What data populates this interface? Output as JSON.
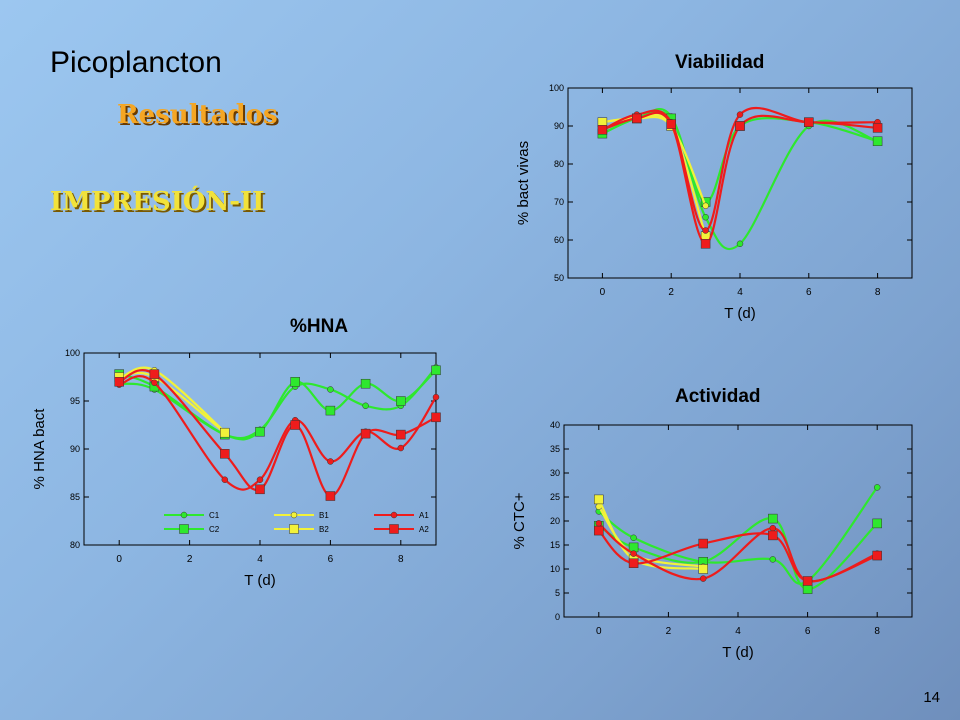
{
  "slide": {
    "title": "Picoplancton",
    "subtitle": "Resultados",
    "section": "IMPRESIÓN-II",
    "page_number": "14"
  },
  "colors": {
    "green": "#2ee82e",
    "yellow": "#f2f23a",
    "red": "#ee1c1c"
  },
  "chart_data": [
    {
      "id": "viabilidad",
      "type": "line",
      "title": "Viabilidad",
      "xlabel": "T (d)",
      "ylabel": "% bact vivas",
      "xlim": [
        -1,
        9
      ],
      "ylim": [
        50,
        100
      ],
      "xticks": [
        0,
        2,
        4,
        6,
        8
      ],
      "yticks": [
        50,
        60,
        70,
        80,
        90,
        100
      ],
      "grid": false,
      "series": [
        {
          "color": "green",
          "marker": "circle",
          "x": [
            0,
            1,
            2,
            3,
            4,
            6,
            8
          ],
          "y": [
            88,
            92,
            92.5,
            66,
            59,
            90,
            86
          ]
        },
        {
          "color": "green",
          "marker": "square",
          "x": [
            0,
            1,
            2,
            3,
            4,
            6,
            8
          ],
          "y": [
            88,
            92,
            92,
            70,
            90,
            91,
            86
          ]
        },
        {
          "color": "yellow",
          "marker": "circle",
          "x": [
            0,
            1,
            2,
            3
          ],
          "y": [
            91,
            92,
            90,
            69
          ]
        },
        {
          "color": "yellow",
          "marker": "square",
          "x": [
            0,
            1,
            2,
            3
          ],
          "y": [
            91,
            92,
            90,
            61
          ]
        },
        {
          "color": "red",
          "marker": "circle",
          "x": [
            0,
            1,
            2,
            3,
            4,
            6,
            8
          ],
          "y": [
            89,
            93,
            91,
            62.5,
            93,
            91,
            91
          ]
        },
        {
          "color": "red",
          "marker": "square",
          "x": [
            0,
            1,
            2,
            3,
            4,
            6,
            8
          ],
          "y": [
            89,
            92,
            90.5,
            59,
            90,
            91,
            89.5
          ]
        }
      ]
    },
    {
      "id": "hna",
      "type": "line",
      "title": "%HNA",
      "xlabel": "T (d)",
      "ylabel": "% HNA bact",
      "xlim": [
        -1,
        9
      ],
      "ylim": [
        80,
        100
      ],
      "xticks": [
        0,
        2,
        4,
        6,
        8
      ],
      "yticks": [
        80,
        85,
        90,
        95,
        100
      ],
      "grid": false,
      "legend": [
        {
          "label": "C1",
          "color": "green",
          "marker": "circle"
        },
        {
          "label": "B1",
          "color": "yellow",
          "marker": "circle"
        },
        {
          "label": "A1",
          "color": "red",
          "marker": "circle"
        },
        {
          "label": "C2",
          "color": "green",
          "marker": "square"
        },
        {
          "label": "B2",
          "color": "yellow",
          "marker": "square"
        },
        {
          "label": "A2",
          "color": "red",
          "marker": "square"
        }
      ],
      "series": [
        {
          "name": "C1",
          "color": "green",
          "marker": "circle",
          "x": [
            0,
            1,
            3,
            4,
            5,
            6,
            7,
            8,
            9
          ],
          "y": [
            96.8,
            96.2,
            91.5,
            92,
            96.5,
            96.2,
            94.5,
            94.5,
            98.5
          ]
        },
        {
          "name": "C2",
          "color": "green",
          "marker": "square",
          "x": [
            0,
            1,
            3,
            4,
            5,
            6,
            7,
            8,
            9
          ],
          "y": [
            97.8,
            96.5,
            91.5,
            91.8,
            97,
            94,
            96.8,
            95,
            98.2
          ]
        },
        {
          "name": "B1",
          "color": "yellow",
          "marker": "circle",
          "x": [
            0,
            1,
            3
          ],
          "y": [
            97.3,
            98.2,
            91.8
          ]
        },
        {
          "name": "B2",
          "color": "yellow",
          "marker": "square",
          "x": [
            0,
            1,
            3
          ],
          "y": [
            97.5,
            97.5,
            91.7
          ]
        },
        {
          "name": "A1",
          "color": "red",
          "marker": "circle",
          "x": [
            0,
            1,
            3,
            4,
            5,
            6,
            7,
            8,
            9
          ],
          "y": [
            96.7,
            96.9,
            86.8,
            86.8,
            93,
            88.7,
            91.8,
            90.1,
            95.4
          ]
        },
        {
          "name": "A2",
          "color": "red",
          "marker": "square",
          "x": [
            0,
            1,
            3,
            4,
            5,
            6,
            7,
            8,
            9
          ],
          "y": [
            97,
            97.8,
            89.5,
            85.8,
            92.5,
            85.1,
            91.6,
            91.5,
            93.3
          ]
        }
      ]
    },
    {
      "id": "actividad",
      "type": "line",
      "title": "Actividad",
      "xlabel": "T (d)",
      "ylabel": "% CTC+",
      "xlim": [
        -1,
        9
      ],
      "ylim": [
        0,
        40
      ],
      "xticks": [
        0,
        2,
        4,
        6,
        8
      ],
      "yticks": [
        0,
        5,
        10,
        15,
        20,
        25,
        30,
        35,
        40
      ],
      "grid": false,
      "series": [
        {
          "color": "green",
          "marker": "circle",
          "x": [
            0,
            1,
            3,
            5,
            6,
            8
          ],
          "y": [
            22,
            16.5,
            11.5,
            12,
            7.5,
            27
          ]
        },
        {
          "color": "green",
          "marker": "square",
          "x": [
            0,
            1,
            3,
            5,
            6,
            8
          ],
          "y": [
            19,
            14.5,
            11.5,
            20.5,
            5.8,
            19.5
          ]
        },
        {
          "color": "yellow",
          "marker": "circle",
          "x": [
            0,
            1,
            3
          ],
          "y": [
            23,
            13,
            10.5
          ]
        },
        {
          "color": "yellow",
          "marker": "square",
          "x": [
            0,
            1,
            3
          ],
          "y": [
            24.5,
            12,
            10
          ]
        },
        {
          "color": "red",
          "marker": "circle",
          "x": [
            0,
            1,
            3,
            5,
            6,
            8
          ],
          "y": [
            19.5,
            13.2,
            8,
            18.5,
            7.5,
            13.2
          ]
        },
        {
          "color": "red",
          "marker": "square",
          "x": [
            0,
            1,
            3,
            5,
            6,
            8
          ],
          "y": [
            18,
            11.2,
            15.3,
            17,
            7.5,
            12.8
          ]
        }
      ]
    }
  ]
}
